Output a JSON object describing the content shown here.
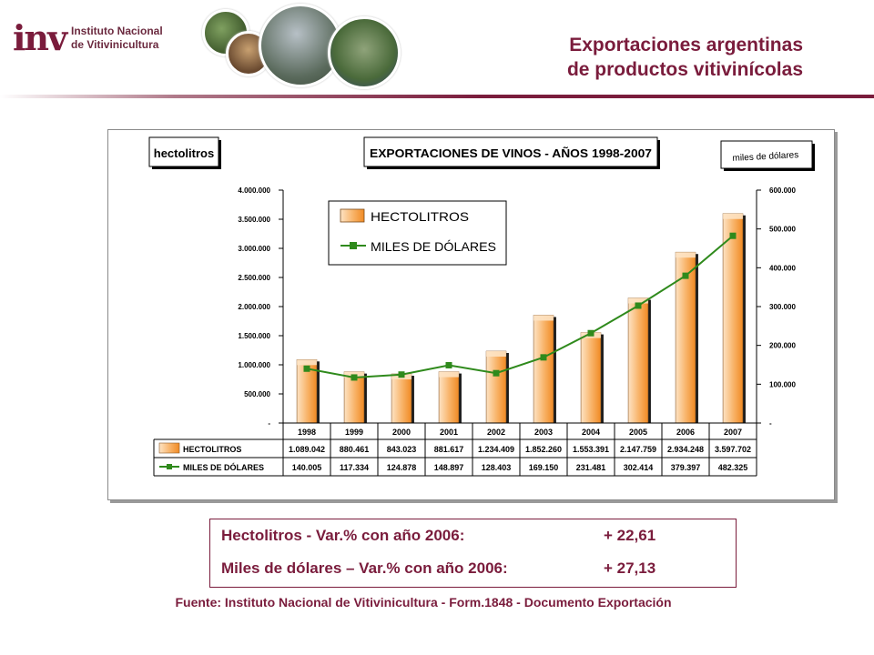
{
  "header": {
    "logo_mark": "inv",
    "logo_line1": "Instituto Nacional",
    "logo_line2": "de Vitivinicultura",
    "title_line1": "Exportaciones argentinas",
    "title_line2": "de productos vitivinícolas"
  },
  "summary": {
    "row1_label": "Hectolitros - Var.% con año 2006:",
    "row1_value": "+ 22,61",
    "row2_label": "Miles de dólares – Var.% con año 2006:",
    "row2_value": "+ 27,13"
  },
  "source": "Fuente: Instituto Nacional de Vitivinicultura - Form.1848 - Documento Exportación",
  "colors": {
    "accent": "#7a1c3c",
    "bar": "#f59a3e",
    "bar_light": "#fde3c4",
    "line": "#2f8a1c"
  },
  "chart_data": {
    "type": "bar",
    "title": "EXPORTACIONES DE VINOS - AÑOS 1998-2007",
    "ylabel_left": "hectolitros",
    "ylabel_right": "miles de dólares",
    "categories": [
      "1998",
      "1999",
      "2000",
      "2001",
      "2002",
      "2003",
      "2004",
      "2005",
      "2006",
      "2007"
    ],
    "ylim_left": [
      0,
      4000000
    ],
    "ylim_right": [
      0,
      600000
    ],
    "yticks_left": [
      "-",
      "500.000",
      "1.000.000",
      "1.500.000",
      "2.000.000",
      "2.500.000",
      "3.000.000",
      "3.500.000",
      "4.000.000"
    ],
    "yticks_right": [
      "-",
      "100.000",
      "200.000",
      "300.000",
      "400.000",
      "500.000",
      "600.000"
    ],
    "legend_position": "top-left",
    "series": [
      {
        "name": "HECTOLITROS",
        "type": "bar",
        "axis": "left",
        "values": [
          1089042,
          880461,
          843023,
          881617,
          1234409,
          1852260,
          1553391,
          2147759,
          2934248,
          3597702
        ],
        "labels": [
          "1.089.042",
          "880.461",
          "843.023",
          "881.617",
          "1.234.409",
          "1.852.260",
          "1.553.391",
          "2.147.759",
          "2.934.248",
          "3.597.702"
        ]
      },
      {
        "name": "MILES DE DÓLARES",
        "type": "line",
        "axis": "right",
        "values": [
          140005,
          117334,
          124878,
          148897,
          128403,
          169150,
          231481,
          302414,
          379397,
          482325
        ],
        "labels": [
          "140.005",
          "117.334",
          "124.878",
          "148.897",
          "128.403",
          "169.150",
          "231.481",
          "302.414",
          "379.397",
          "482.325"
        ]
      }
    ]
  }
}
